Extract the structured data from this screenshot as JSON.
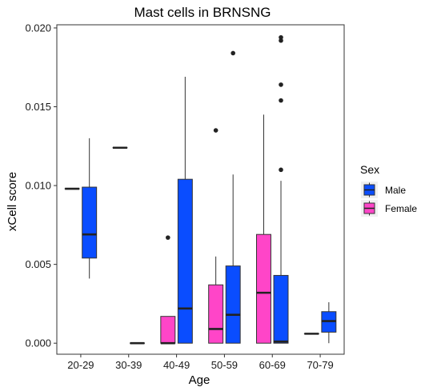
{
  "chart_data": {
    "type": "boxplot",
    "title": "Mast cells in BRNSNG",
    "xlabel": "Age",
    "ylabel": "xCell score",
    "ylim": [
      -0.0007,
      0.0202
    ],
    "yticks": [
      "0.000",
      "0.005",
      "0.010",
      "0.015",
      "0.020"
    ],
    "ytick_values": [
      0,
      0.005,
      0.01,
      0.015,
      0.02
    ],
    "categories": [
      "20-29",
      "30-39",
      "40-49",
      "50-59",
      "60-69",
      "70-79"
    ],
    "grid": false,
    "legend": {
      "title": "Sex",
      "position": "right",
      "entries": [
        {
          "label": "Male",
          "color": "#0a4dff"
        },
        {
          "label": "Female",
          "color": "#ff45c8"
        }
      ]
    },
    "series": [
      {
        "name": "Female",
        "color": "#ff45c8",
        "boxes": [
          {
            "category": "20-29",
            "min": 0.0098,
            "q1": 0.0098,
            "median": 0.0098,
            "q3": 0.0098,
            "max": 0.0098,
            "outliers": []
          },
          {
            "category": "30-39",
            "min": 0.0124,
            "q1": 0.0124,
            "median": 0.0124,
            "q3": 0.0124,
            "max": 0.0124,
            "outliers": []
          },
          {
            "category": "40-49",
            "min": 0.0,
            "q1": 0.0,
            "median": 0.0,
            "q3": 0.0017,
            "max": 0.0017,
            "outliers": [
              0.0067
            ]
          },
          {
            "category": "50-59",
            "min": 0.0,
            "q1": 0.0,
            "median": 0.0009,
            "q3": 0.0037,
            "max": 0.0055,
            "outliers": [
              0.0135
            ]
          },
          {
            "category": "60-69",
            "min": 0.0,
            "q1": 0.0,
            "median": 0.0032,
            "q3": 0.0069,
            "max": 0.0145,
            "outliers": []
          },
          {
            "category": "70-79",
            "min": 0.0006,
            "q1": 0.0006,
            "median": 0.0006,
            "q3": 0.0006,
            "max": 0.0006,
            "outliers": []
          }
        ]
      },
      {
        "name": "Male",
        "color": "#0a4dff",
        "boxes": [
          {
            "category": "20-29",
            "min": 0.0041,
            "q1": 0.0054,
            "median": 0.0069,
            "q3": 0.0099,
            "max": 0.013,
            "outliers": []
          },
          {
            "category": "30-39",
            "min": 0.0,
            "q1": 0.0,
            "median": 0.0,
            "q3": 0.0,
            "max": 0.0,
            "outliers": []
          },
          {
            "category": "40-49",
            "min": 0.0,
            "q1": 0.0,
            "median": 0.0022,
            "q3": 0.0104,
            "max": 0.0169,
            "outliers": []
          },
          {
            "category": "50-59",
            "min": 0.0,
            "q1": 0.0,
            "median": 0.0018,
            "q3": 0.0049,
            "max": 0.0107,
            "outliers": [
              0.0184
            ]
          },
          {
            "category": "60-69",
            "min": 0.0,
            "q1": 0.0,
            "median": 0.0001,
            "q3": 0.0043,
            "max": 0.0103,
            "outliers": [
              0.011,
              0.0154,
              0.0164,
              0.0192,
              0.0194
            ]
          },
          {
            "category": "70-79",
            "min": 0.0,
            "q1": 0.0007,
            "median": 0.0014,
            "q3": 0.002,
            "max": 0.0026,
            "outliers": []
          }
        ]
      }
    ]
  }
}
